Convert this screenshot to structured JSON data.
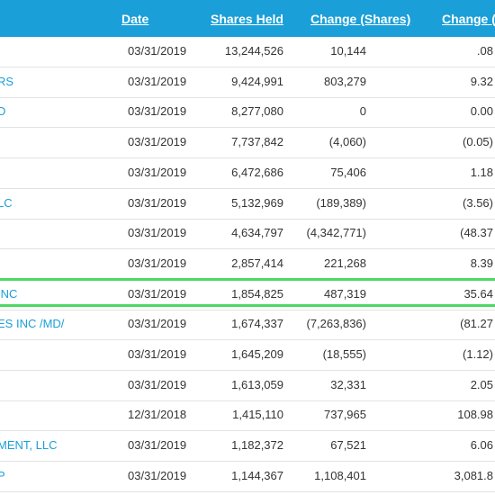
{
  "headers": {
    "date": "Date",
    "shares_held": "Shares Held",
    "change_shares": "Change (Shares)",
    "change_pct": "Change (%"
  },
  "rows": [
    {
      "holder": "",
      "date": "03/31/2019",
      "shares": "13,244,526",
      "change": "10,144",
      "pct": ".08"
    },
    {
      "holder": "RS",
      "date": "03/31/2019",
      "shares": "9,424,991",
      "change": "803,279",
      "pct": "9.32"
    },
    {
      "holder": "D",
      "date": "03/31/2019",
      "shares": "8,277,080",
      "change": "0",
      "pct": "0.00"
    },
    {
      "holder": "",
      "date": "03/31/2019",
      "shares": "7,737,842",
      "change": "(4,060)",
      "pct": "(0.05)"
    },
    {
      "holder": "",
      "date": "03/31/2019",
      "shares": "6,472,686",
      "change": "75,406",
      "pct": "1.18"
    },
    {
      "holder": "LC",
      "date": "03/31/2019",
      "shares": "5,132,969",
      "change": "(189,389)",
      "pct": "(3.56)"
    },
    {
      "holder": "",
      "date": "03/31/2019",
      "shares": "4,634,797",
      "change": "(4,342,771)",
      "pct": "(48.37"
    },
    {
      "holder": "",
      "date": "03/31/2019",
      "shares": "2,857,414",
      "change": "221,268",
      "pct": "8.39"
    },
    {
      "holder": " INC",
      "date": "03/31/2019",
      "shares": "1,854,825",
      "change": "487,319",
      "pct": "35.64"
    },
    {
      "holder": "ES INC /MD/",
      "date": "03/31/2019",
      "shares": "1,674,337",
      "change": "(7,263,836)",
      "pct": "(81.27"
    },
    {
      "holder": "",
      "date": "03/31/2019",
      "shares": "1,645,209",
      "change": "(18,555)",
      "pct": "(1.12)"
    },
    {
      "holder": "",
      "date": "03/31/2019",
      "shares": "1,613,059",
      "change": "32,331",
      "pct": "2.05"
    },
    {
      "holder": "",
      "date": "12/31/2018",
      "shares": "1,415,110",
      "change": "737,965",
      "pct": "108.98"
    },
    {
      "holder": "MENT, LLC",
      "date": "03/31/2019",
      "shares": "1,182,372",
      "change": "67,521",
      "pct": "6.06"
    },
    {
      "holder": "P",
      "date": "03/31/2019",
      "shares": "1,144,367",
      "change": "1,108,401",
      "pct": "3,081.8"
    }
  ],
  "highlight_color": "#4cd964",
  "accent_color": "#1a9fd8"
}
